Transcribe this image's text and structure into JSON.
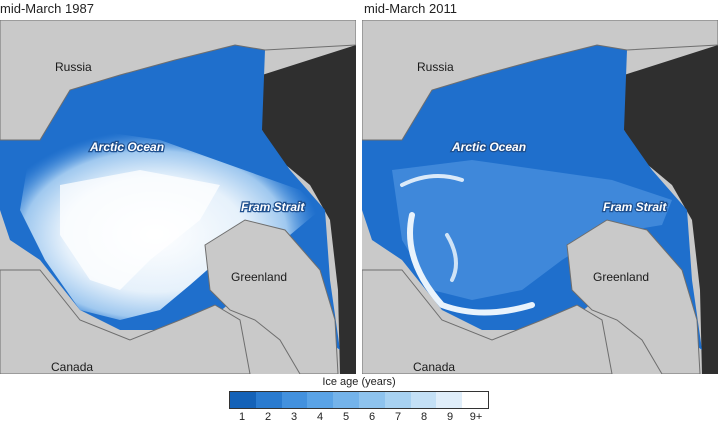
{
  "panels": [
    {
      "title": "mid-March 1987",
      "labels": {
        "russia": "Russia",
        "ocean": "Arctic Ocean",
        "strait": "Fram Strait",
        "greenland": "Greenland",
        "canada": "Canada"
      }
    },
    {
      "title": "mid-March 2011",
      "labels": {
        "russia": "Russia",
        "ocean": "Arctic Ocean",
        "strait": "Fram Strait",
        "greenland": "Greenland",
        "canada": "Canada"
      }
    }
  ],
  "legend": {
    "title": "Ice age (years)",
    "ticks": [
      "1",
      "2",
      "3",
      "4",
      "5",
      "6",
      "7",
      "8",
      "9",
      "9+"
    ],
    "colors": [
      "#1462b8",
      "#2a7bd0",
      "#4391de",
      "#5aa3e6",
      "#74b3ea",
      "#8ec3ee",
      "#a8d2f2",
      "#c4e0f6",
      "#e0eefa",
      "#ffffff"
    ]
  },
  "colors": {
    "land": "#c9c9c9",
    "coast": "#6e6e6e",
    "ocean_dark": "#2f2f2f",
    "young_ice": "#1f6fcc"
  }
}
